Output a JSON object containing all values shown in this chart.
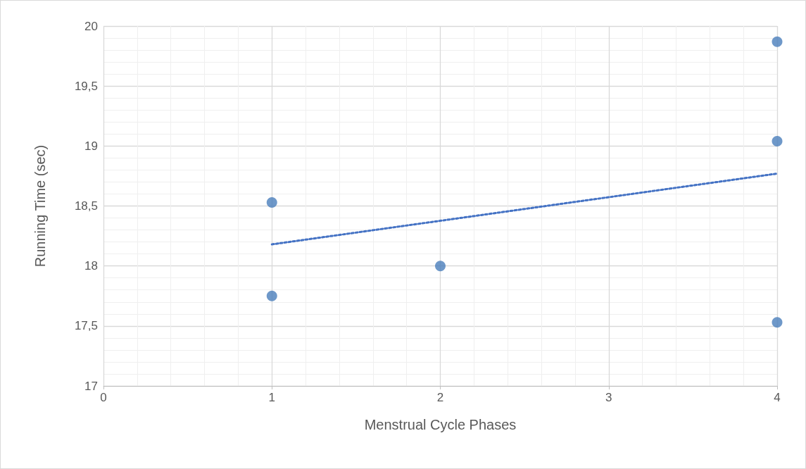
{
  "chart_data": {
    "type": "scatter",
    "xlabel": "Menstrual Cycle Phases",
    "ylabel": "Running Time (sec)",
    "xlim": [
      0,
      4
    ],
    "xticks": [
      0,
      1,
      2,
      3,
      4
    ],
    "ylim": [
      17,
      20
    ],
    "yticks": [
      17,
      {
        "value": 17.5,
        "label": "17,5"
      },
      18,
      {
        "value": 18.5,
        "label": "18,5"
      },
      19,
      {
        "value": 19.5,
        "label": "19,5"
      },
      20
    ],
    "grid": true,
    "marker": "circle",
    "series": [
      {
        "color": "#4a7ebb",
        "x": [
          1,
          1,
          2,
          4,
          4,
          4
        ],
        "values": [
          18.53,
          17.75,
          18.0,
          19.87,
          19.04,
          17.53
        ]
      },
      {
        "type": "line",
        "color": "#4472c4",
        "x": [
          1,
          4
        ],
        "values": [
          18.18,
          18.77
        ],
        "marker": "none",
        "line_style": "dotted"
      }
    ]
  }
}
